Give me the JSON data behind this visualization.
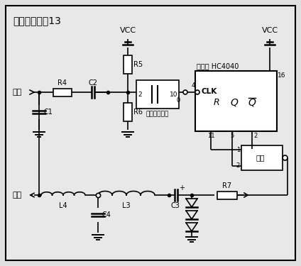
{
  "title": "信号产生单元13",
  "bg_color": "#e8e8e8",
  "border_color": "#000000",
  "line_color": "#000000",
  "fig_bg": "#e0e0e0",
  "labels": {
    "title": "信号产生单元13",
    "jin_ru": "进入",
    "shu_chu": "输出",
    "vcc1": "VCC",
    "vcc2": "VCC",
    "r4": "R4",
    "c1": "C1",
    "c2": "C2",
    "r5": "R5",
    "r6": "R6",
    "schmidt": "施密特触发器",
    "divider": "分频器 HC4040",
    "clk": "CLK",
    "and_gate": "与门",
    "r7": "R7",
    "c3": "C3",
    "c4": "C4",
    "l3": "L3",
    "l4": "L4",
    "pin16": "16",
    "pin2_schmidt": "2",
    "pin10": "10",
    "pin4": "4",
    "pin11": "11",
    "pin5": "5",
    "pin2_hc": "2",
    "pin1": "1"
  }
}
